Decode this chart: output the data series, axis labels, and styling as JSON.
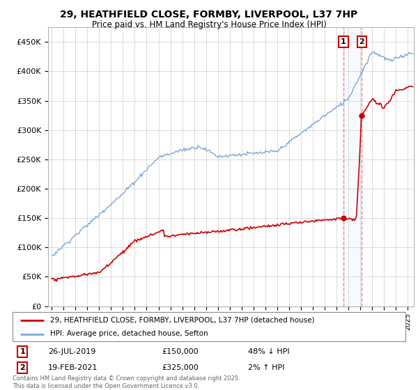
{
  "title_line1": "29, HEATHFIELD CLOSE, FORMBY, LIVERPOOL, L37 7HP",
  "title_line2": "Price paid vs. HM Land Registry's House Price Index (HPI)",
  "ylim": [
    0,
    475000
  ],
  "yticks": [
    0,
    50000,
    100000,
    150000,
    200000,
    250000,
    300000,
    350000,
    400000,
    450000
  ],
  "ytick_labels": [
    "£0",
    "£50K",
    "£100K",
    "£150K",
    "£200K",
    "£250K",
    "£300K",
    "£350K",
    "£400K",
    "£450K"
  ],
  "hpi_color": "#7aa8d8",
  "price_color": "#cc0000",
  "dashed_color": "#ee8888",
  "shade_color": "#ddeeff",
  "legend_label_price": "29, HEATHFIELD CLOSE, FORMBY, LIVERPOOL, L37 7HP (detached house)",
  "legend_label_hpi": "HPI: Average price, detached house, Sefton",
  "sale1_date": "26-JUL-2019",
  "sale1_price": 150000,
  "sale1_hpi_pct": "48% ↓ HPI",
  "sale1_year": 2019.57,
  "sale2_date": "19-FEB-2021",
  "sale2_price": 325000,
  "sale2_hpi_pct": "2% ↑ HPI",
  "sale2_year": 2021.12,
  "footnote": "Contains HM Land Registry data © Crown copyright and database right 2025.\nThis data is licensed under the Open Government Licence v3.0.",
  "bg_color": "#ffffff",
  "grid_color": "#cccccc"
}
